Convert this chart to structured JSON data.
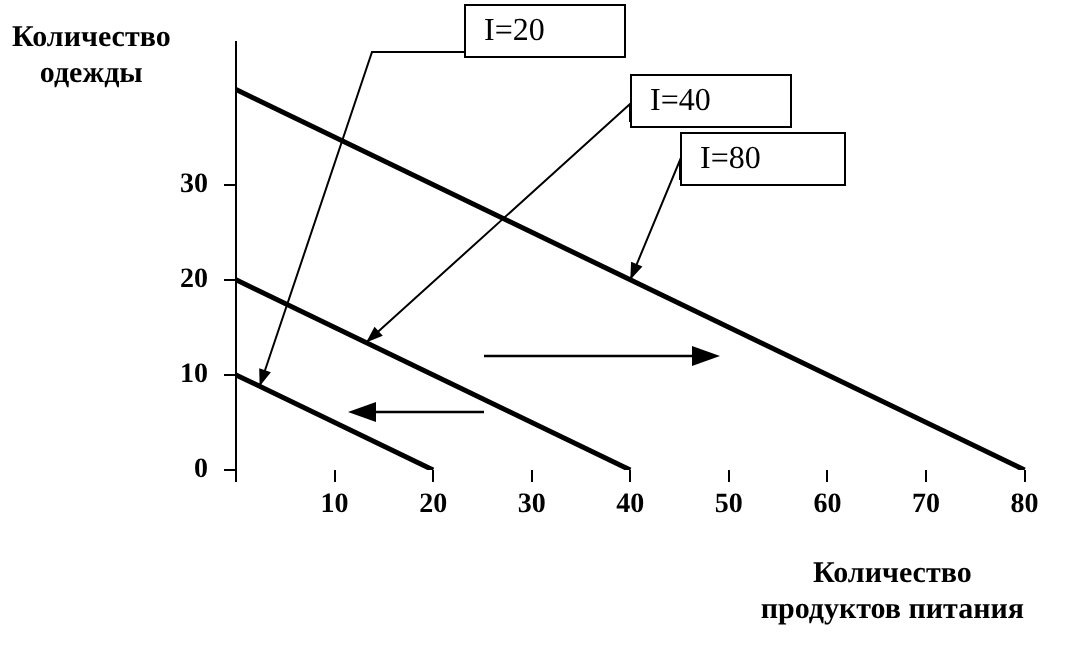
{
  "chart_data": {
    "type": "line",
    "xlabel": "Количество\nпродуктов питания",
    "ylabel": "Количество\nодежды",
    "xlim": [
      0,
      84
    ],
    "ylim": [
      0,
      45
    ],
    "xticks": [
      {
        "value": 0,
        "label": null
      },
      10,
      20,
      30,
      40,
      50,
      60,
      70,
      80
    ],
    "yticks": [
      0,
      10,
      20,
      30
    ],
    "grid": false,
    "legend": false,
    "marker": "none",
    "line_style": "solid",
    "series": [
      {
        "color": "#000000",
        "x": [
          0,
          20
        ],
        "values": [
          10,
          0
        ]
      },
      {
        "color": "#000000",
        "x": [
          0,
          40
        ],
        "values": [
          20,
          0
        ]
      },
      {
        "color": "#000000",
        "x": [
          0,
          80
        ],
        "values": [
          40,
          0
        ]
      }
    ],
    "annotations": [
      {
        "text": "I=20",
        "x": 2.4,
        "y": 8.8
      },
      {
        "text": "I=40",
        "x": 13.2,
        "y": 13.4
      },
      {
        "text": "I=80",
        "x": 40,
        "y": 20
      }
    ]
  }
}
